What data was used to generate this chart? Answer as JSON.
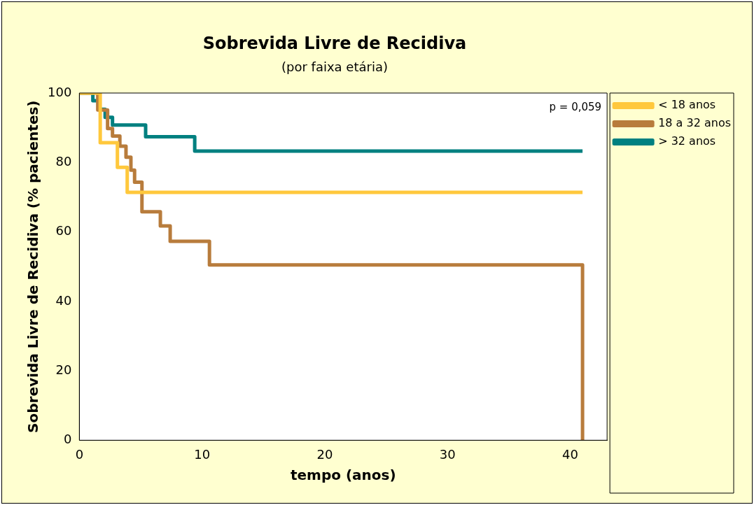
{
  "chart_data": {
    "type": "step",
    "title": "Sobrevida Livre de Recidiva",
    "subtitle": "(por faixa etária)",
    "xlabel": "tempo (anos)",
    "ylabel": "Sobrevida Livre de Recidiva (% pacientes)",
    "series": [
      {
        "name": "< 18 anos",
        "color": "#ffc83c",
        "x": [
          0,
          1.7,
          3.1,
          3.9,
          41
        ],
        "values": [
          100,
          85.7,
          78.6,
          71.4,
          71.4
        ]
      },
      {
        "name": "18 a 32 anos",
        "color": "#b87c3c",
        "x": [
          0,
          1.5,
          2.3,
          2.7,
          3.3,
          3.8,
          4.2,
          4.5,
          5.1,
          6.6,
          7.4,
          10.6,
          41,
          41
        ],
        "values": [
          100,
          95.1,
          89.8,
          87.6,
          84.7,
          81.5,
          77.8,
          74.3,
          65.8,
          61.7,
          57.3,
          50.5,
          50.5,
          0
        ]
      },
      {
        "name": "> 32 anos",
        "color": "#008080",
        "x": [
          0,
          1.1,
          1.6,
          2.1,
          2.7,
          5.4,
          9.4,
          41
        ],
        "values": [
          100,
          97.8,
          95.3,
          93,
          90.8,
          87.4,
          83.3,
          83.3
        ]
      }
    ],
    "xlim": [
      0,
      43
    ],
    "xticks": [
      0,
      10,
      20,
      30,
      40
    ],
    "ylim": [
      0,
      100
    ],
    "yticks": [
      0,
      20,
      40,
      60,
      80,
      100
    ],
    "grid": false,
    "legend": "top right",
    "annotations": [
      "p = 0,059"
    ]
  }
}
